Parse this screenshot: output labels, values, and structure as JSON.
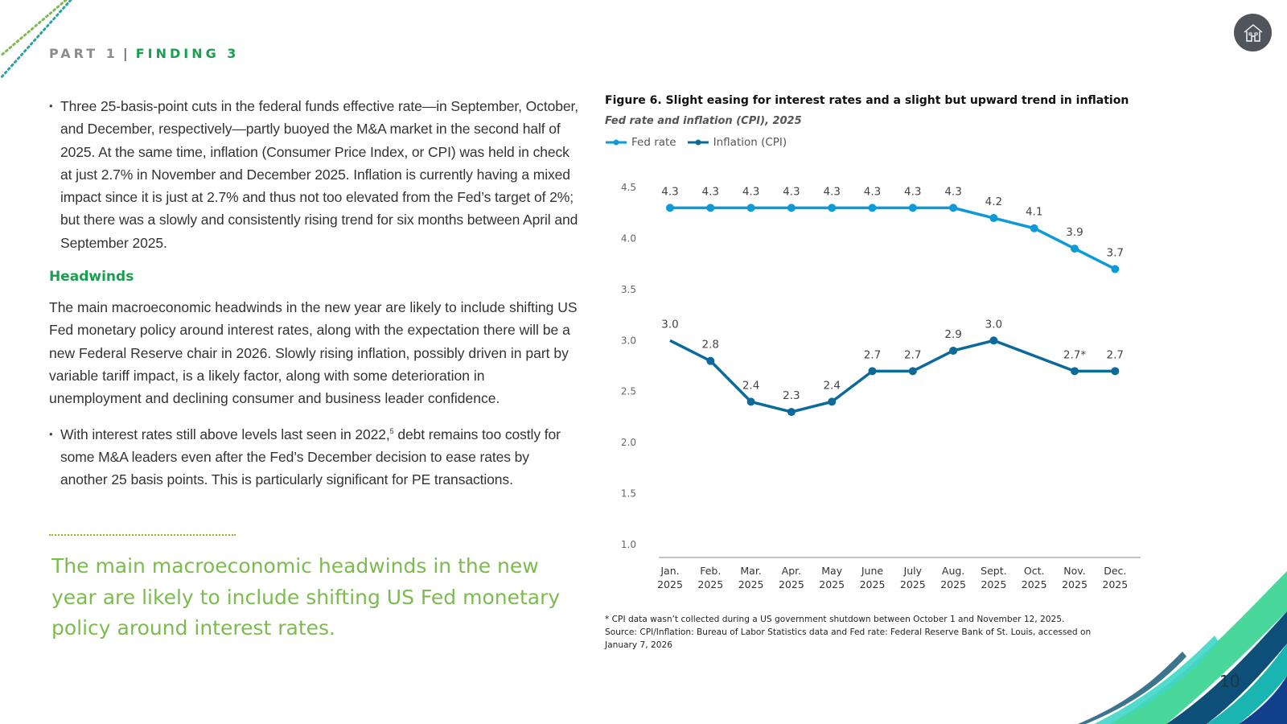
{
  "header": {
    "part": "PART 1",
    "separator": "|",
    "finding": "FINDING 3"
  },
  "nav": {
    "home_icon": "home-icon"
  },
  "left": {
    "bullet1": "Three 25-basis-point cuts in the federal funds effective rate—in September, October, and December, respectively—partly buoyed the M&A market in the second half of 2025. At the same time, inflation (Consumer Price Index, or CPI) was held in check at just 2.7% in November and December 2025. Inflation is currently having a mixed impact since it is just at 2.7% and thus not too elevated from the Fed’s target of 2%; but there was a slowly and consistently rising trend for six months between April and September 2025.",
    "heading": "Headwinds",
    "paragraph": "The main macroeconomic headwinds in the new year are likely to include shifting US Fed monetary policy around interest rates, along with the expectation there will be a new Federal Reserve chair in 2026. Slowly rising inflation, possibly driven in part by variable tariff impact, is a likely factor, along with some deterioration in unemployment and declining consumer and business leader confidence.",
    "bullet2_pre": "With interest rates still above levels last seen in 2022,",
    "bullet2_sup": "5",
    "bullet2_post": " debt remains too costly for some M&A leaders even after the Fed’s December decision to ease rates by another 25 basis points. This is particularly significant for PE transactions.",
    "pull_quote": "The main macroeconomic headwinds in the new year are likely to include shifting US Fed monetary policy around interest rates."
  },
  "figure": {
    "title": "Figure 6. Slight easing for interest rates and a slight but upward trend in inflation",
    "subtitle": "Fed rate and inflation (CPI), 2025",
    "footnote": "* CPI data wasn’t collected during a US government shutdown between October 1 and November 12, 2025.",
    "source": "Source: CPI/Inflation: Bureau of Labor Statistics data and Fed rate: Federal Reserve Bank of St. Louis, accessed on January 7, 2026"
  },
  "chart_data": {
    "type": "line",
    "title": "Figure 6. Slight easing for interest rates and a slight but upward trend in inflation",
    "subtitle": "Fed rate and inflation (CPI), 2025",
    "xlabel": "",
    "ylabel": "",
    "categories": [
      [
        "Jan.",
        "2025"
      ],
      [
        "Feb.",
        "2025"
      ],
      [
        "Mar.",
        "2025"
      ],
      [
        "Apr.",
        "2025"
      ],
      [
        "May",
        "2025"
      ],
      [
        "June",
        "2025"
      ],
      [
        "July",
        "2025"
      ],
      [
        "Aug.",
        "2025"
      ],
      [
        "Sept.",
        "2025"
      ],
      [
        "Oct.",
        "2025"
      ],
      [
        "Nov.",
        "2025"
      ],
      [
        "Dec.",
        "2025"
      ]
    ],
    "ylim": [
      1.0,
      4.5
    ],
    "yticks": [
      "1.0",
      "1.5",
      "2.0",
      "2.5",
      "3.0",
      "3.5",
      "4.0",
      "4.5"
    ],
    "grid": false,
    "legend_position": "top-left",
    "series": [
      {
        "name": "Fed rate",
        "color": "#0d9ad6",
        "values": [
          4.3,
          4.3,
          4.3,
          4.3,
          4.3,
          4.3,
          4.3,
          4.3,
          4.2,
          4.1,
          3.9,
          3.7
        ],
        "labels": [
          "4.3",
          "4.3",
          "4.3",
          "4.3",
          "4.3",
          "4.3",
          "4.3",
          "4.3",
          "4.2",
          "4.1",
          "3.9",
          "3.7"
        ]
      },
      {
        "name": "Inflation (CPI)",
        "color": "#0b6a9a",
        "values": [
          3.0,
          2.8,
          2.4,
          2.3,
          2.4,
          2.7,
          2.7,
          2.9,
          3.0,
          null,
          2.7,
          2.7
        ],
        "labels": [
          "3.0",
          "2.8",
          "2.4",
          "2.3",
          "2.4",
          "2.7",
          "2.7",
          "2.9",
          "3.0",
          "",
          "2.7*",
          "2.7"
        ]
      }
    ],
    "annotations": [
      "* CPI data wasn’t collected during a US government shutdown between October 1 and November 12, 2025."
    ]
  },
  "page_number": "10"
}
